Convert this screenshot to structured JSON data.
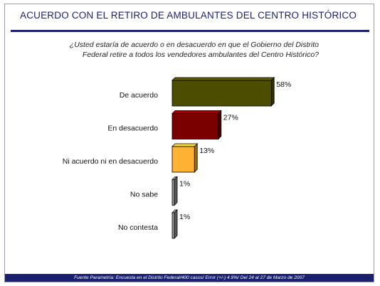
{
  "page": {
    "title": "ACUERDO CON EL RETIRO DE AMBULANTES DEL CENTRO HISTÓRICO",
    "question": "¿Usted estaría de acuerdo o en desacuerdo en que el Gobierno del Distrito Federal retire a todos los vendedores ambulantes del Centro Histórico?",
    "footer": "Fuente Parametría: Encuesta en el Distrito Federal/400 casos/ Error (+/-) 4.9%/ Del 24 al 27 de Marzo de 2007"
  },
  "chart_data": {
    "type": "bar",
    "orientation": "horizontal",
    "categories": [
      "De acuerdo",
      "En desacuerdo",
      "Ni acuerdo ni en desacuerdo",
      "No sabe",
      "No contesta"
    ],
    "values": [
      58,
      27,
      13,
      1,
      1
    ],
    "value_labels": [
      "58%",
      "27%",
      "13%",
      "1%",
      "1%"
    ],
    "unit": "%",
    "xlim": [
      0,
      100
    ],
    "grid": false,
    "legend": "none",
    "colors": [
      "#4d4d00",
      "#7a0000",
      "#ffb233",
      "#999999",
      "#999999"
    ]
  }
}
